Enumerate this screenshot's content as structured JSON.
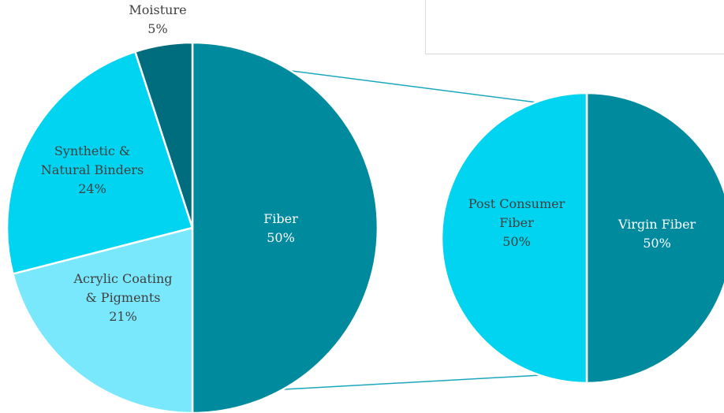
{
  "chart_data": {
    "type": "pie",
    "variant": "pie-of-pie",
    "main_pie": {
      "slices": [
        {
          "label_lines": [
            "Fiber"
          ],
          "value_label": "50%",
          "value": 50,
          "color": "#008a9e",
          "label_color": "#ffffff"
        },
        {
          "label_lines": [
            "Acrylic Coating",
            "& Pigments"
          ],
          "value_label": "21%",
          "value": 21,
          "color": "#7ae8fc",
          "label_color": "#404040"
        },
        {
          "label_lines": [
            "Synthetic &",
            "Natural  Binders"
          ],
          "value_label": "24%",
          "value": 24,
          "color": "#00d4f0",
          "label_color": "#404040"
        },
        {
          "label_lines": [
            "Moisture"
          ],
          "value_label": "5%",
          "value": 5,
          "color": "#006d7e",
          "label_color": "#404040"
        }
      ]
    },
    "secondary_pie": {
      "slices": [
        {
          "label_lines": [
            "Virgin Fiber"
          ],
          "value_label": "50%",
          "value": 50,
          "color": "#008a9e",
          "label_color": "#ffffff"
        },
        {
          "label_lines": [
            "Post Consumer",
            "Fiber"
          ],
          "value_label": "50%",
          "value": 50,
          "color": "#00d4f0",
          "label_color": "#404040"
        }
      ]
    },
    "connector_color": "#1aa7bd"
  }
}
